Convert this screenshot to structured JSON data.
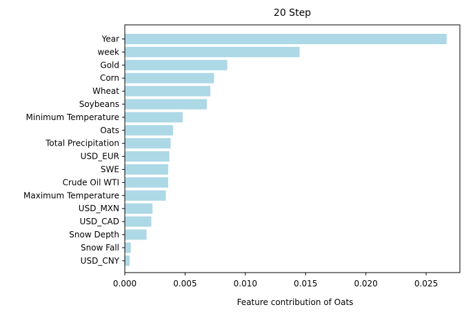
{
  "chart_data": {
    "type": "bar",
    "orientation": "horizontal",
    "title": "20 Step",
    "xlabel": "Feature contribution of Oats",
    "ylabel": "",
    "xlim": [
      0,
      0.0278
    ],
    "xticks": [
      "0.000",
      "0.005",
      "0.010",
      "0.015",
      "0.020",
      "0.025"
    ],
    "xtick_values": [
      0,
      0.005,
      0.01,
      0.015,
      0.02,
      0.025
    ],
    "bar_color": "#add8e6",
    "grid": false,
    "categories": [
      "Year",
      "week",
      "Gold",
      "Corn",
      "Wheat",
      "Soybeans",
      "Minimum Temperature",
      "Oats",
      "Total Precipitation",
      "USD_EUR",
      "SWE",
      "Crude Oil WTI",
      "Maximum Temperature",
      "USD_MXN",
      "USD_CAD",
      "Snow Depth",
      "Snow Fall",
      "USD_CNY"
    ],
    "values": [
      0.0267,
      0.0145,
      0.0085,
      0.0074,
      0.0071,
      0.0068,
      0.0048,
      0.004,
      0.0038,
      0.0037,
      0.0036,
      0.0036,
      0.0034,
      0.0023,
      0.0022,
      0.0018,
      0.0005,
      0.0004
    ]
  }
}
